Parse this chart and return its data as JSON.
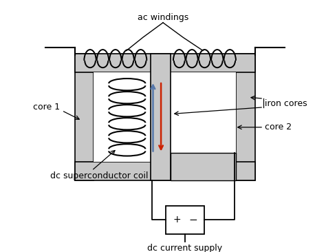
{
  "bg_color": "#ffffff",
  "light_gray": "#c8c8c8",
  "black": "#000000",
  "white": "#ffffff",
  "blue_arrow": "#5577aa",
  "red_arrow": "#cc2200",
  "labels": {
    "ac_windings": "ac windings",
    "iron_cores": "iron cores",
    "core1": "core 1",
    "core2": "core 2",
    "dc_coil": "dc superconductor coil",
    "dc_supply": "dc current supply"
  },
  "figsize": [
    4.74,
    3.66
  ],
  "dpi": 100
}
